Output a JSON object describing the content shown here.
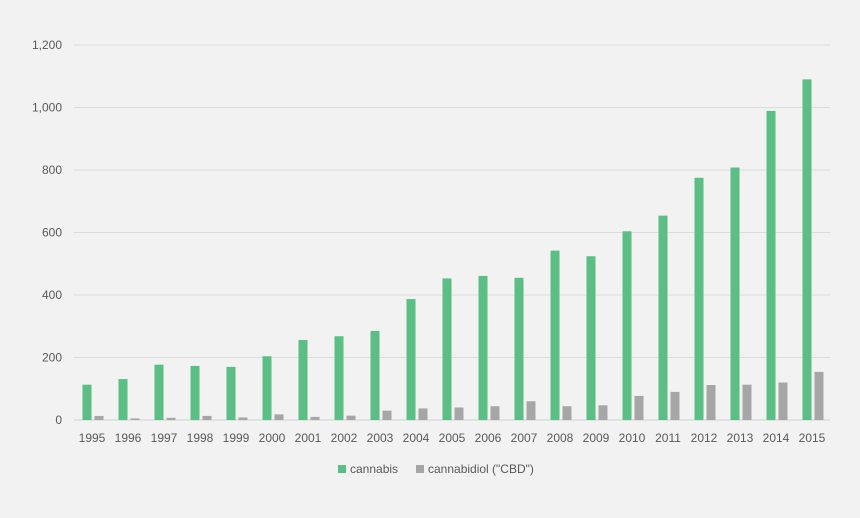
{
  "chart_data": {
    "type": "bar",
    "title": "",
    "xlabel": "",
    "ylabel": "",
    "categories": [
      "1995",
      "1996",
      "1997",
      "1998",
      "1999",
      "2000",
      "2001",
      "2002",
      "2003",
      "2004",
      "2005",
      "2006",
      "2007",
      "2008",
      "2009",
      "2010",
      "2011",
      "2012",
      "2013",
      "2014",
      "2015"
    ],
    "series": [
      {
        "name": "cannabis",
        "color": "#5bbf85",
        "values": [
          113,
          131,
          177,
          173,
          170,
          204,
          256,
          268,
          285,
          387,
          453,
          461,
          455,
          542,
          524,
          604,
          654,
          775,
          808,
          989,
          1090
        ]
      },
      {
        "name": "cannabidiol (\"CBD\")",
        "color": "#a6a6a6",
        "values": [
          13,
          5,
          7,
          13,
          8,
          18,
          10,
          14,
          30,
          37,
          40,
          44,
          60,
          44,
          47,
          77,
          90,
          112,
          113,
          120,
          154
        ]
      }
    ],
    "ylim": [
      0,
      1200
    ],
    "yticks": [
      0,
      200,
      400,
      600,
      800,
      1000,
      1200
    ],
    "ytick_labels": [
      "0",
      "200",
      "400",
      "600",
      "800",
      "1,000",
      "1,200"
    ],
    "grid": true,
    "legend_position": "bottom-center"
  }
}
